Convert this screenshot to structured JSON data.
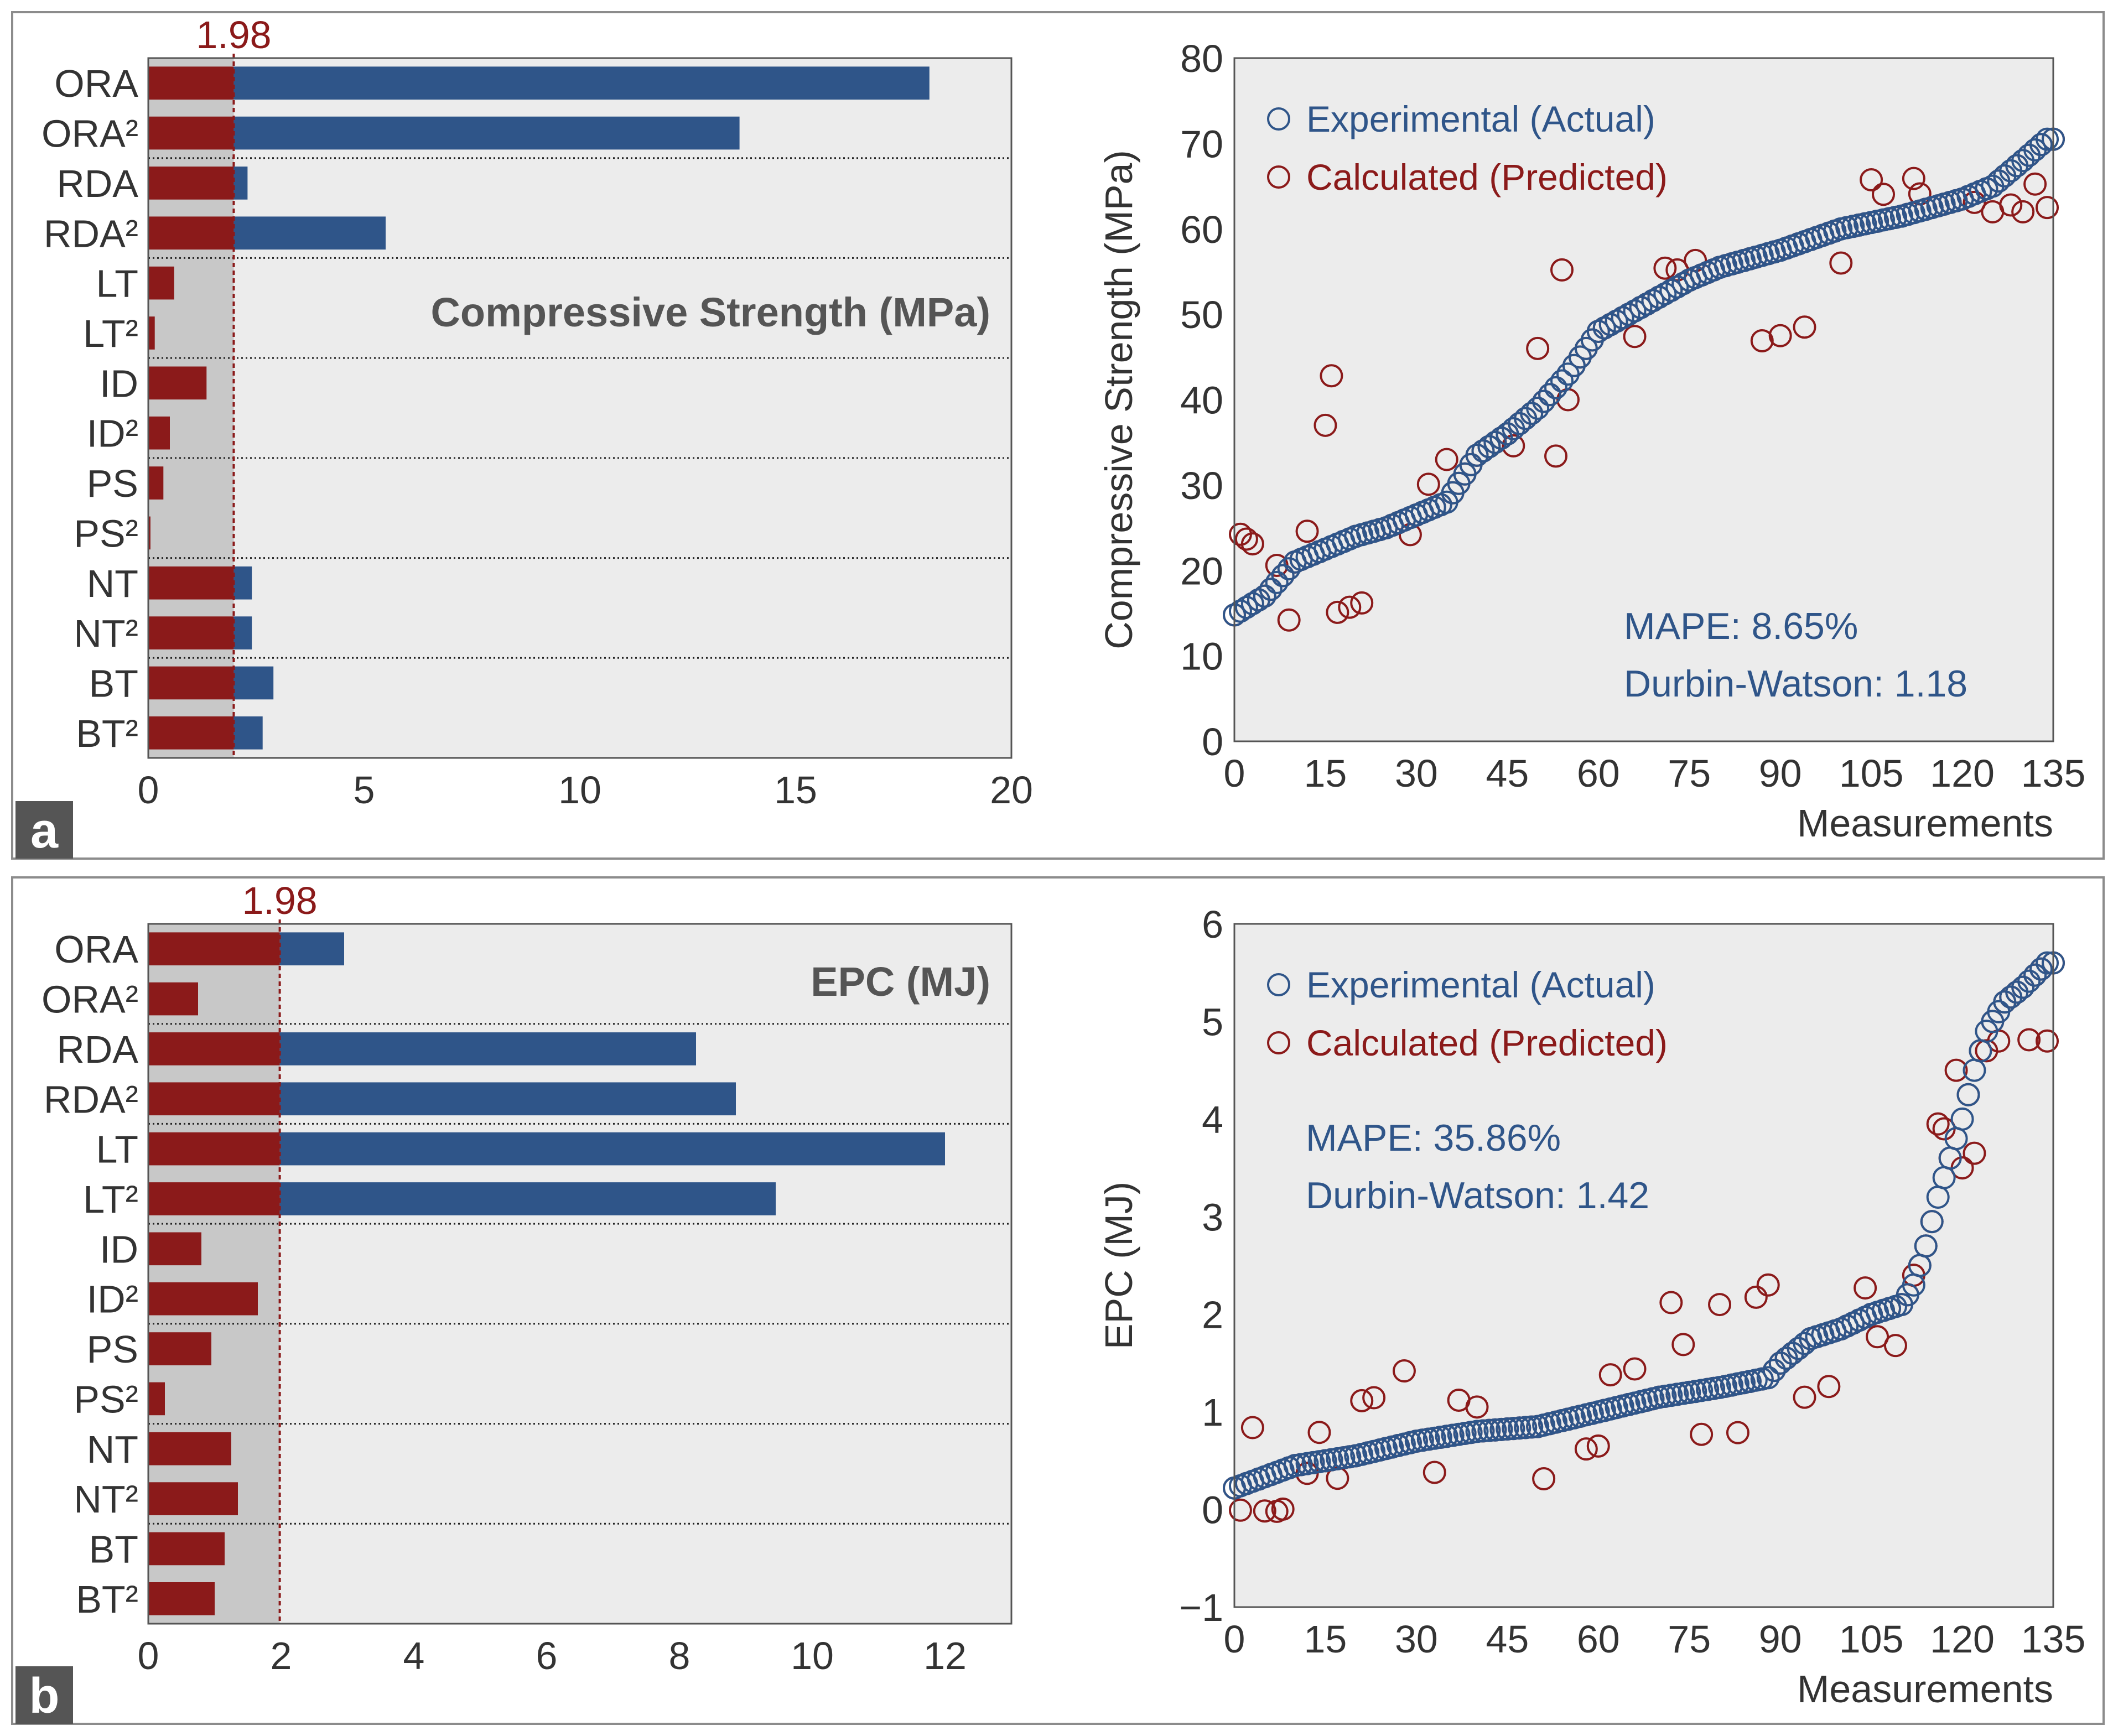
{
  "colors": {
    "blue": "#2f5589",
    "red": "#8b1a1a",
    "plot_bg": "#ececec",
    "shade_bg": "#c8c8c8"
  },
  "panels": [
    {
      "letter": "a"
    },
    {
      "letter": "b"
    }
  ],
  "chart_data": [
    {
      "id": "pareto_a",
      "type": "bar",
      "orientation": "horizontal",
      "title": "Compressive Strength (MPa)",
      "categories": [
        "ORA",
        "ORA²",
        "RDA",
        "RDA²",
        "LT",
        "LT²",
        "ID",
        "ID²",
        "PS",
        "PS²",
        "NT",
        "NT²",
        "BT",
        "BT²"
      ],
      "values": [
        18.1,
        13.7,
        2.3,
        5.5,
        0.6,
        0.15,
        1.35,
        0.5,
        0.35,
        0.05,
        2.4,
        2.4,
        2.9,
        2.65
      ],
      "threshold": 1.98,
      "threshold_label": "1.98",
      "xlim": [
        0,
        20
      ],
      "xticks": [
        0,
        5,
        10,
        15,
        20
      ],
      "xlabel": "",
      "ylabel": ""
    },
    {
      "id": "scatter_a",
      "type": "scatter",
      "xlabel": "Measurements",
      "ylabel": "Compressive Strength (MPa)",
      "xlim": [
        0,
        135
      ],
      "ylim": [
        0,
        80
      ],
      "xticks": [
        0,
        15,
        30,
        45,
        60,
        75,
        90,
        105,
        120,
        135
      ],
      "yticks": [
        0,
        10,
        20,
        30,
        40,
        50,
        60,
        70,
        80
      ],
      "legend": [
        "Experimental (Actual)",
        "Calculated (Predicted)"
      ],
      "stats": [
        "MAPE: 8.65%",
        "Durbin-Watson: 1.18"
      ],
      "series": [
        {
          "name": "Experimental (Actual)",
          "anchors": [
            [
              0,
              14.8
            ],
            [
              5,
              17
            ],
            [
              10,
              21
            ],
            [
              20,
              24
            ],
            [
              25,
              25
            ],
            [
              30,
              26.5
            ],
            [
              35,
              28
            ],
            [
              40,
              33.5
            ],
            [
              45,
              36
            ],
            [
              50,
              39
            ],
            [
              55,
              43
            ],
            [
              60,
              48
            ],
            [
              65,
              50
            ],
            [
              70,
              52
            ],
            [
              75,
              54
            ],
            [
              80,
              55.5
            ],
            [
              90,
              57.5
            ],
            [
              100,
              60
            ],
            [
              110,
              61.5
            ],
            [
              115,
              62.5
            ],
            [
              120,
              63.5
            ],
            [
              125,
              65
            ],
            [
              130,
              68
            ],
            [
              134,
              70.5
            ]
          ]
        },
        {
          "name": "Calculated (Predicted)",
          "offsets": [
            [
              1,
              9
            ],
            [
              2,
              8
            ],
            [
              3,
              7
            ],
            [
              7,
              2
            ],
            [
              9,
              -6
            ],
            [
              12,
              3
            ],
            [
              15,
              -8
            ],
            [
              15,
              14.5
            ],
            [
              16,
              20
            ],
            [
              17,
              -8
            ],
            [
              19,
              -8
            ],
            [
              21,
              -8
            ],
            [
              29,
              -2
            ],
            [
              32,
              3
            ],
            [
              35,
              5
            ],
            [
              46,
              -2
            ],
            [
              50,
              7
            ],
            [
              53,
              -8
            ],
            [
              54,
              13
            ],
            [
              55,
              12
            ],
            [
              55,
              -3
            ],
            [
              66,
              -3
            ],
            [
              71,
              3
            ],
            [
              73,
              2
            ],
            [
              76,
              2
            ],
            [
              87,
              -10
            ],
            [
              90,
              -10
            ],
            [
              94,
              -10
            ],
            [
              100,
              -4
            ],
            [
              105,
              5
            ],
            [
              107,
              3
            ],
            [
              112,
              4
            ],
            [
              113,
              2
            ],
            [
              122,
              -1
            ],
            [
              125,
              -3
            ],
            [
              128,
              -4
            ],
            [
              130,
              -6
            ],
            [
              132,
              -4
            ],
            [
              134,
              -8
            ]
          ]
        }
      ]
    },
    {
      "id": "pareto_b",
      "type": "bar",
      "orientation": "horizontal",
      "title": "EPC (MJ)",
      "categories": [
        "ORA",
        "ORA²",
        "RDA",
        "RDA²",
        "LT",
        "LT²",
        "ID",
        "ID²",
        "PS",
        "PS²",
        "NT",
        "NT²",
        "BT",
        "BT²"
      ],
      "values": [
        2.95,
        0.75,
        8.25,
        8.85,
        12.0,
        9.45,
        0.8,
        1.65,
        0.95,
        0.25,
        1.25,
        1.35,
        1.15,
        1.0
      ],
      "threshold": 1.98,
      "threshold_label": "1.98",
      "xlim": [
        0,
        13
      ],
      "xticks": [
        0,
        2,
        4,
        6,
        8,
        10,
        12
      ],
      "xlabel": "",
      "ylabel": ""
    },
    {
      "id": "scatter_b",
      "type": "scatter",
      "xlabel": "Measurements",
      "ylabel": "EPC (MJ)",
      "xlim": [
        0,
        135
      ],
      "ylim": [
        -1,
        6
      ],
      "xticks": [
        0,
        15,
        30,
        45,
        60,
        75,
        90,
        105,
        120,
        135
      ],
      "yticks": [
        -1,
        0,
        1,
        2,
        3,
        4,
        5,
        6
      ],
      "legend": [
        "Experimental (Actual)",
        "Calculated (Predicted)"
      ],
      "stats": [
        "MAPE: 35.86%",
        "Durbin-Watson: 1.42"
      ],
      "series": [
        {
          "name": "Experimental (Actual)",
          "anchors": [
            [
              0,
              0.22
            ],
            [
              10,
              0.45
            ],
            [
              20,
              0.55
            ],
            [
              30,
              0.7
            ],
            [
              40,
              0.8
            ],
            [
              50,
              0.85
            ],
            [
              60,
              1.0
            ],
            [
              70,
              1.15
            ],
            [
              80,
              1.25
            ],
            [
              88,
              1.35
            ],
            [
              90,
              1.5
            ],
            [
              95,
              1.75
            ],
            [
              100,
              1.85
            ],
            [
              105,
              2.0
            ],
            [
              110,
              2.1
            ],
            [
              112,
              2.3
            ],
            [
              114,
              2.7
            ],
            [
              116,
              3.2
            ],
            [
              118,
              3.6
            ],
            [
              120,
              4.0
            ],
            [
              122,
              4.5
            ],
            [
              124,
              4.9
            ],
            [
              127,
              5.2
            ],
            [
              130,
              5.35
            ],
            [
              134,
              5.6
            ]
          ]
        },
        {
          "name": "Calculated (Predicted)",
          "offsets": [
            [
              1,
              -0.25
            ],
            [
              3,
              0.55
            ],
            [
              5,
              -0.35
            ],
            [
              7,
              -0.4
            ],
            [
              8,
              -0.4
            ],
            [
              12,
              -0.1
            ],
            [
              14,
              0.3
            ],
            [
              17,
              -0.2
            ],
            [
              21,
              0.55
            ],
            [
              23,
              0.55
            ],
            [
              28,
              0.75
            ],
            [
              33,
              -0.35
            ],
            [
              37,
              0.35
            ],
            [
              40,
              0.25
            ],
            [
              51,
              -0.55
            ],
            [
              58,
              -0.35
            ],
            [
              60,
              -0.35
            ],
            [
              62,
              0.35
            ],
            [
              66,
              0.35
            ],
            [
              72,
              0.95
            ],
            [
              74,
              0.5
            ],
            [
              77,
              -0.45
            ],
            [
              80,
              0.85
            ],
            [
              83,
              -0.5
            ],
            [
              86,
              0.85
            ],
            [
              88,
              0.95
            ],
            [
              94,
              -0.55
            ],
            [
              98,
              -0.55
            ],
            [
              104,
              0.3
            ],
            [
              106,
              -0.25
            ],
            [
              109,
              -0.4
            ],
            [
              112,
              0.1
            ],
            [
              116,
              0.75
            ],
            [
              117,
              0.5
            ],
            [
              119,
              0.7
            ],
            [
              120,
              -0.5
            ],
            [
              122,
              -0.85
            ],
            [
              124,
              -0.2
            ],
            [
              126,
              -0.3
            ],
            [
              131,
              -0.6
            ],
            [
              134,
              -0.8
            ]
          ]
        }
      ]
    }
  ]
}
